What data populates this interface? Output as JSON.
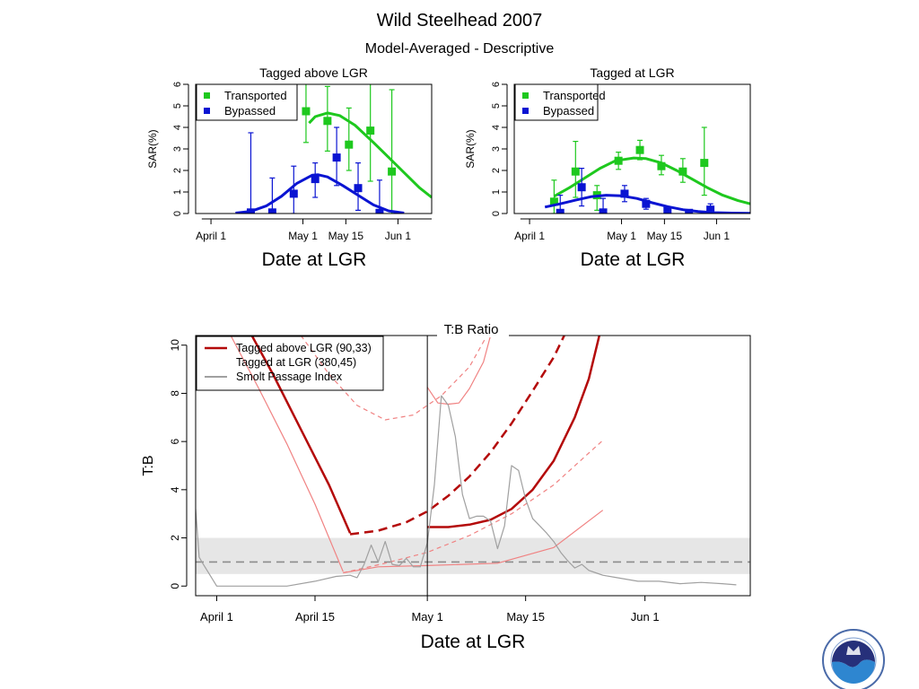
{
  "title": "Wild Steelhead 2007",
  "subtitle": "Model-Averaged - Descriptive",
  "colors": {
    "transported": "#1ec81e",
    "bypassed": "#0a14d2",
    "dark_red": "#b40a0a",
    "light_red": "#f08282",
    "gray_line": "#a0a0a0",
    "band": "#e6e6e6",
    "dashed_ref": "#8c8c8c"
  },
  "chart_data": [
    {
      "type": "scatter",
      "title": "Tagged above LGR",
      "ylabel": "SAR(%)",
      "xlabel": "Date at LGR",
      "x_units": "day of year (Apr 1 = 0)",
      "xlim": [
        -5,
        72
      ],
      "ylim": [
        0,
        6
      ],
      "y_ticks": [
        0,
        1,
        2,
        3,
        4,
        5,
        6
      ],
      "x_ticks": [
        {
          "x": 0,
          "label": "April 1"
        },
        {
          "x": 30,
          "label": "May 1"
        },
        {
          "x": 44,
          "label": "May 15"
        },
        {
          "x": 61,
          "label": "Jun 1"
        }
      ],
      "legend": {
        "placement": "top-left",
        "entries": [
          "Transported",
          "Bypassed"
        ]
      },
      "series": [
        {
          "name": "Transported",
          "color": "#1ec81e",
          "marker": "square",
          "points": [
            {
              "x": 31,
              "y": 4.75,
              "lo": 3.3,
              "hi": 6.2
            },
            {
              "x": 38,
              "y": 4.3,
              "lo": 2.9,
              "hi": 5.9
            },
            {
              "x": 45,
              "y": 3.2,
              "lo": 2.0,
              "hi": 4.9
            },
            {
              "x": 52,
              "y": 3.85,
              "lo": 1.5,
              "hi": 6.2
            },
            {
              "x": 59,
              "y": 1.95,
              "lo": 0,
              "hi": 5.75
            }
          ],
          "curve": [
            [
              32,
              4.2
            ],
            [
              34,
              4.5
            ],
            [
              38,
              4.67
            ],
            [
              42,
              4.55
            ],
            [
              47,
              4.1
            ],
            [
              53,
              3.3
            ],
            [
              58,
              2.6
            ],
            [
              63,
              1.9
            ],
            [
              68,
              1.2
            ],
            [
              72,
              0.75
            ]
          ]
        },
        {
          "name": "Bypassed",
          "color": "#0a14d2",
          "marker": "square",
          "points": [
            {
              "x": 13,
              "y": 0.05,
              "lo": 0,
              "hi": 3.75
            },
            {
              "x": 20,
              "y": 0.05,
              "lo": 0,
              "hi": 1.65
            },
            {
              "x": 27,
              "y": 0.92,
              "lo": 0,
              "hi": 2.2
            },
            {
              "x": 34,
              "y": 1.6,
              "lo": 0.75,
              "hi": 2.35
            },
            {
              "x": 41,
              "y": 2.6,
              "lo": 1.3,
              "hi": 4.0
            },
            {
              "x": 48,
              "y": 1.18,
              "lo": 0.15,
              "hi": 2.35
            },
            {
              "x": 55,
              "y": 0.03,
              "lo": 0,
              "hi": 1.55
            }
          ],
          "curve": [
            [
              8,
              0.02
            ],
            [
              13,
              0.1
            ],
            [
              18,
              0.35
            ],
            [
              23,
              0.8
            ],
            [
              28,
              1.4
            ],
            [
              33,
              1.78
            ],
            [
              35,
              1.8
            ],
            [
              38,
              1.7
            ],
            [
              43,
              1.3
            ],
            [
              48,
              0.85
            ],
            [
              53,
              0.4
            ],
            [
              58,
              0.12
            ],
            [
              63,
              0.02
            ]
          ]
        }
      ]
    },
    {
      "type": "scatter",
      "title": "Tagged at LGR",
      "ylabel": "SAR(%)",
      "xlabel": "Date at LGR",
      "x_units": "day of year (Apr 1 = 0)",
      "xlim": [
        -5,
        72
      ],
      "ylim": [
        0,
        6
      ],
      "y_ticks": [
        0,
        1,
        2,
        3,
        4,
        5,
        6
      ],
      "x_ticks": [
        {
          "x": 0,
          "label": "April 1"
        },
        {
          "x": 30,
          "label": "May 1"
        },
        {
          "x": 44,
          "label": "May 15"
        },
        {
          "x": 61,
          "label": "Jun 1"
        }
      ],
      "legend": {
        "placement": "top-left",
        "entries": [
          "Transported",
          "Bypassed"
        ]
      },
      "series": [
        {
          "name": "Transported",
          "color": "#1ec81e",
          "marker": "square",
          "points": [
            {
              "x": 8,
              "y": 0.55,
              "lo": 0,
              "hi": 1.55
            },
            {
              "x": 15,
              "y": 1.95,
              "lo": 0.75,
              "hi": 3.35
            },
            {
              "x": 22,
              "y": 0.85,
              "lo": 0.15,
              "hi": 1.3
            },
            {
              "x": 29,
              "y": 2.45,
              "lo": 2.05,
              "hi": 2.85
            },
            {
              "x": 36,
              "y": 2.95,
              "lo": 2.5,
              "hi": 3.4
            },
            {
              "x": 43,
              "y": 2.2,
              "lo": 1.8,
              "hi": 2.7
            },
            {
              "x": 50,
              "y": 1.95,
              "lo": 1.45,
              "hi": 2.55
            },
            {
              "x": 57,
              "y": 2.35,
              "lo": 0.85,
              "hi": 4.0
            }
          ],
          "curve": [
            [
              8,
              0.8
            ],
            [
              13,
              1.2
            ],
            [
              18,
              1.65
            ],
            [
              23,
              2.1
            ],
            [
              28,
              2.45
            ],
            [
              34,
              2.58
            ],
            [
              38,
              2.55
            ],
            [
              43,
              2.35
            ],
            [
              48,
              2.0
            ],
            [
              53,
              1.6
            ],
            [
              58,
              1.2
            ],
            [
              63,
              0.85
            ],
            [
              68,
              0.6
            ],
            [
              72,
              0.45
            ]
          ]
        },
        {
          "name": "Bypassed",
          "color": "#0a14d2",
          "marker": "square",
          "points": [
            {
              "x": 10,
              "y": 0.03,
              "lo": 0,
              "hi": 0.85
            },
            {
              "x": 17,
              "y": 1.22,
              "lo": 0.35,
              "hi": 2.1
            },
            {
              "x": 24,
              "y": 0.05,
              "lo": 0,
              "hi": 0.7
            },
            {
              "x": 31,
              "y": 0.92,
              "lo": 0.55,
              "hi": 1.3
            },
            {
              "x": 38,
              "y": 0.45,
              "lo": 0.2,
              "hi": 0.7
            },
            {
              "x": 45,
              "y": 0.12,
              "lo": 0.03,
              "hi": 0.25
            },
            {
              "x": 52,
              "y": 0.03,
              "lo": 0,
              "hi": 0.12
            },
            {
              "x": 59,
              "y": 0.18,
              "lo": 0,
              "hi": 0.45
            }
          ],
          "curve": [
            [
              5,
              0.3
            ],
            [
              10,
              0.45
            ],
            [
              15,
              0.62
            ],
            [
              20,
              0.78
            ],
            [
              25,
              0.85
            ],
            [
              30,
              0.82
            ],
            [
              35,
              0.7
            ],
            [
              40,
              0.5
            ],
            [
              45,
              0.32
            ],
            [
              50,
              0.18
            ],
            [
              55,
              0.09
            ],
            [
              60,
              0.04
            ],
            [
              66,
              0.02
            ],
            [
              72,
              0.01
            ]
          ]
        }
      ]
    },
    {
      "type": "line",
      "title": "T:B Ratio",
      "ylabel": "T:B",
      "xlabel": "Date at LGR",
      "x_units": "day of year (Apr 1 = 0)",
      "xlim": [
        -3,
        76
      ],
      "ylim": [
        -0.4,
        10.4
      ],
      "y_ticks": [
        0,
        2,
        4,
        6,
        8,
        10
      ],
      "x_ticks": [
        {
          "x": 0,
          "label": "April 1"
        },
        {
          "x": 14,
          "label": "April 15"
        },
        {
          "x": 30,
          "label": "May 1"
        },
        {
          "x": 44,
          "label": "May 15"
        },
        {
          "x": 61,
          "label": "Jun 1"
        }
      ],
      "legend": {
        "placement": "top-left",
        "entries": [
          "Tagged above LGR  (90,33)",
          "Tagged at LGR  (380,45)",
          "Smolt Passage Index"
        ]
      },
      "reference_line": {
        "y": 1,
        "style": "dashed"
      },
      "reference_band": {
        "y_lo": 0.5,
        "y_hi": 2.0
      },
      "vertical_line": {
        "x": 30
      },
      "series": [
        {
          "name": "Tagged above LGR  (90,33)",
          "color": "#b40a0a",
          "width": 2.5,
          "dash": "",
          "points": [
            [
              5,
              10.4
            ],
            [
              8,
              8.8
            ],
            [
              12,
              6.5
            ],
            [
              16,
              4.2
            ],
            [
              19,
              2.2
            ]
          ]
        },
        {
          "name": "Tagged above LGR  (90,33)",
          "color": "#b40a0a",
          "width": 2.5,
          "dash": "10,6",
          "points": [
            [
              19,
              2.15
            ],
            [
              23,
              2.3
            ],
            [
              27,
              2.65
            ],
            [
              30,
              3.1
            ],
            [
              33,
              3.75
            ],
            [
              36,
              4.55
            ],
            [
              39,
              5.55
            ],
            [
              42,
              6.75
            ],
            [
              45,
              8.1
            ],
            [
              48,
              9.5
            ],
            [
              49.5,
              10.4
            ]
          ]
        },
        {
          "name": "Tagged at LGR  (380,45)",
          "color": "#b40a0a",
          "width": 2.5,
          "dash": "",
          "points": [
            [
              30,
              2.45
            ],
            [
              33,
              2.45
            ],
            [
              36,
              2.55
            ],
            [
              39,
              2.75
            ],
            [
              42,
              3.2
            ],
            [
              45,
              4.0
            ],
            [
              48,
              5.2
            ],
            [
              51,
              7.0
            ],
            [
              53,
              8.6
            ],
            [
              54.5,
              10.4
            ]
          ]
        },
        {
          "name": "upper CI above",
          "color": "#f08282",
          "width": 1.2,
          "dash": "",
          "points": [
            [
              2,
              10.4
            ],
            [
              6,
              8.2
            ],
            [
              10,
              5.9
            ],
            [
              14,
              3.4
            ],
            [
              18,
              0.6
            ]
          ]
        },
        {
          "name": "lower CI above",
          "color": "#f08282",
          "width": 1.2,
          "dash": "",
          "points": [
            [
              18,
              0.55
            ],
            [
              23,
              0.8
            ],
            [
              30,
              0.85
            ],
            [
              40,
              0.95
            ],
            [
              48,
              1.6
            ],
            [
              55,
              3.15
            ]
          ]
        },
        {
          "name": "upper CI dashed",
          "color": "#f08282",
          "width": 1.2,
          "dash": "5,4",
          "points": [
            [
              12,
              10.4
            ],
            [
              16,
              8.8
            ],
            [
              20,
              7.5
            ],
            [
              24,
              6.9
            ],
            [
              28,
              7.1
            ],
            [
              32,
              7.9
            ],
            [
              36,
              9.1
            ],
            [
              38.5,
              10.4
            ]
          ]
        },
        {
          "name": "lower CI dashed",
          "color": "#f08282",
          "width": 1.2,
          "dash": "5,4",
          "points": [
            [
              18,
              0.55
            ],
            [
              24,
              0.95
            ],
            [
              30,
              1.4
            ],
            [
              36,
              2.1
            ],
            [
              42,
              3.0
            ],
            [
              48,
              4.2
            ],
            [
              55,
              6.05
            ]
          ]
        },
        {
          "name": "upper CI at LGR",
          "color": "#f08282",
          "width": 1.2,
          "dash": "",
          "points": [
            [
              30,
              8.25
            ],
            [
              31.5,
              7.6
            ],
            [
              33,
              7.55
            ],
            [
              34.5,
              7.6
            ],
            [
              36,
              8.2
            ],
            [
              38,
              9.3
            ],
            [
              39,
              10.4
            ]
          ]
        },
        {
          "name": "Smolt Passage Index",
          "color": "#a0a0a0",
          "width": 1.2,
          "dash": "",
          "points": [
            [
              -3,
              3.2
            ],
            [
              -2.5,
              1.2
            ],
            [
              -2,
              0.95
            ],
            [
              0,
              0
            ],
            [
              5,
              0
            ],
            [
              10,
              0
            ],
            [
              14,
              0.2
            ],
            [
              17,
              0.4
            ],
            [
              19,
              0.45
            ],
            [
              20,
              0.35
            ],
            [
              21,
              0.9
            ],
            [
              22,
              1.7
            ],
            [
              23,
              1.0
            ],
            [
              24,
              1.85
            ],
            [
              25,
              0.9
            ],
            [
              26,
              0.85
            ],
            [
              27,
              1.15
            ],
            [
              28,
              0.8
            ],
            [
              29,
              0.8
            ],
            [
              30,
              1.8
            ],
            [
              31,
              4.2
            ],
            [
              32,
              7.9
            ],
            [
              33,
              7.5
            ],
            [
              34,
              6.2
            ],
            [
              35,
              3.8
            ],
            [
              36,
              2.8
            ],
            [
              37,
              2.9
            ],
            [
              38,
              2.9
            ],
            [
              39,
              2.7
            ],
            [
              40,
              1.55
            ],
            [
              41,
              2.5
            ],
            [
              42,
              5.0
            ],
            [
              43,
              4.8
            ],
            [
              44,
              3.6
            ],
            [
              45,
              2.8
            ],
            [
              46,
              2.5
            ],
            [
              47,
              2.2
            ],
            [
              48,
              1.85
            ],
            [
              49,
              1.4
            ],
            [
              50,
              1.05
            ],
            [
              51,
              0.75
            ],
            [
              52,
              0.9
            ],
            [
              53,
              0.65
            ],
            [
              54,
              0.55
            ],
            [
              55,
              0.45
            ],
            [
              57,
              0.35
            ],
            [
              60,
              0.2
            ],
            [
              63,
              0.2
            ],
            [
              66,
              0.1
            ],
            [
              69,
              0.15
            ],
            [
              72,
              0.1
            ],
            [
              74,
              0.05
            ]
          ]
        }
      ]
    }
  ]
}
